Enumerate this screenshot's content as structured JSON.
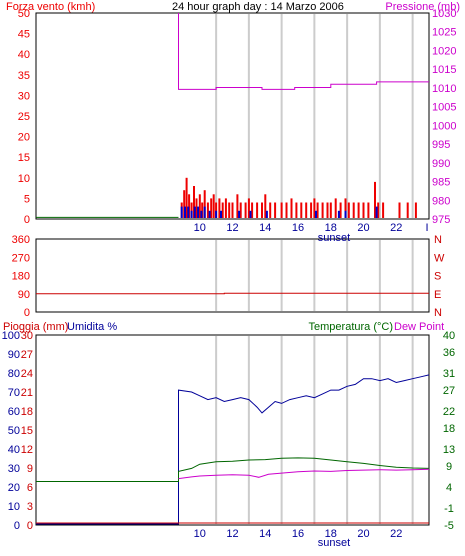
{
  "chart_data": [
    {
      "type": "bar",
      "title": "24 hour graph day : 14 Marzo 2006",
      "left_axis_label": "Forza vento (kmh)",
      "right_axis_label": "Pressione (mb)",
      "x_ticks": [
        "10",
        "12",
        "14",
        "16",
        "18",
        "20",
        "22"
      ],
      "x_extra_tick": "I",
      "x_annotation": "sunset",
      "left_ticks": [
        0,
        5,
        10,
        15,
        20,
        25,
        30,
        35,
        40,
        45,
        50
      ],
      "right_ticks": [
        975,
        980,
        985,
        990,
        995,
        1000,
        1005,
        1010,
        1015,
        1020,
        1025,
        1030
      ],
      "ylim_left": [
        0,
        50
      ],
      "ylim_right": [
        975,
        1030
      ],
      "series": [
        {
          "name": "pressure",
          "style": "line",
          "color": "#cc00cc",
          "points": [
            [
              8.7,
              1030
            ],
            [
              8.7,
              1009.6
            ],
            [
              11.0,
              1009.6
            ],
            [
              11.0,
              1010.1
            ],
            [
              13.8,
              1010.1
            ],
            [
              13.8,
              1009.6
            ],
            [
              15.8,
              1009.6
            ],
            [
              15.8,
              1010.1
            ],
            [
              18.0,
              1010.1
            ],
            [
              18.0,
              1011.0
            ],
            [
              20.8,
              1011.0
            ],
            [
              20.8,
              1011.6
            ],
            [
              24,
              1011.6
            ]
          ]
        },
        {
          "name": "wind_gust",
          "style": "bars",
          "color": "#ee0000",
          "points": [
            [
              8.9,
              4
            ],
            [
              9.05,
              7
            ],
            [
              9.2,
              10
            ],
            [
              9.35,
              6
            ],
            [
              9.5,
              4
            ],
            [
              9.65,
              8
            ],
            [
              9.8,
              5
            ],
            [
              10.0,
              6
            ],
            [
              10.15,
              4
            ],
            [
              10.3,
              7
            ],
            [
              10.5,
              4
            ],
            [
              10.7,
              5
            ],
            [
              10.85,
              6
            ],
            [
              11.0,
              4
            ],
            [
              11.2,
              5
            ],
            [
              11.4,
              4
            ],
            [
              11.6,
              5
            ],
            [
              11.8,
              4
            ],
            [
              12.0,
              4
            ],
            [
              12.3,
              6
            ],
            [
              12.5,
              4
            ],
            [
              12.8,
              4
            ],
            [
              13.0,
              5
            ],
            [
              13.2,
              4
            ],
            [
              13.5,
              4
            ],
            [
              13.8,
              4
            ],
            [
              14.0,
              6
            ],
            [
              14.3,
              4
            ],
            [
              14.6,
              4
            ],
            [
              15.0,
              4
            ],
            [
              15.3,
              4
            ],
            [
              15.6,
              5
            ],
            [
              15.9,
              4
            ],
            [
              16.2,
              4
            ],
            [
              16.5,
              4
            ],
            [
              16.8,
              4
            ],
            [
              17.0,
              5
            ],
            [
              17.2,
              4
            ],
            [
              17.5,
              4
            ],
            [
              17.8,
              4
            ],
            [
              18.0,
              4
            ],
            [
              18.3,
              5
            ],
            [
              18.6,
              4
            ],
            [
              18.9,
              5
            ],
            [
              19.1,
              4
            ],
            [
              19.4,
              4
            ],
            [
              19.7,
              4
            ],
            [
              20.0,
              4
            ],
            [
              20.3,
              4
            ],
            [
              20.7,
              9
            ],
            [
              20.9,
              4
            ],
            [
              21.2,
              4
            ],
            [
              22.2,
              4
            ],
            [
              22.7,
              4
            ],
            [
              23.2,
              4
            ]
          ]
        },
        {
          "name": "wind_speed",
          "style": "bars",
          "color": "#0000cc",
          "points": [
            [
              8.9,
              3
            ],
            [
              9.1,
              3
            ],
            [
              9.3,
              3
            ],
            [
              9.5,
              2
            ],
            [
              9.7,
              3
            ],
            [
              9.9,
              3
            ],
            [
              10.1,
              2
            ],
            [
              10.3,
              3
            ],
            [
              10.6,
              2
            ],
            [
              11.0,
              2
            ],
            [
              11.3,
              2
            ],
            [
              12.4,
              2
            ],
            [
              13.1,
              2
            ],
            [
              14.1,
              2
            ],
            [
              17.1,
              2
            ],
            [
              18.5,
              2
            ],
            [
              18.9,
              2
            ],
            [
              20.8,
              3
            ]
          ]
        },
        {
          "name": "baseline",
          "style": "line",
          "color": "#006600",
          "points": [
            [
              0,
              0.4
            ],
            [
              8.7,
              0.4
            ]
          ]
        }
      ]
    },
    {
      "type": "line",
      "left_ticks": [
        "360",
        "270",
        "180",
        "90",
        "0"
      ],
      "right_ticks": [
        "N",
        "W",
        "S",
        "E",
        "N"
      ],
      "ylim": [
        0,
        360
      ],
      "series": [
        {
          "name": "wind_direction",
          "color": "#cc0000",
          "points": [
            [
              0,
              90
            ],
            [
              11.5,
              90
            ],
            [
              11.5,
              92
            ],
            [
              24,
              92
            ]
          ]
        }
      ]
    },
    {
      "type": "line",
      "rain_label": "Pioggia (mm)",
      "humidity_label": "Umidita %",
      "temperature_label": "Temperatura (°C)",
      "dewpoint_label": "Dew Point",
      "x_ticks": [
        "10",
        "12",
        "14",
        "16",
        "18",
        "20",
        "22"
      ],
      "x_annotation": "sunset",
      "humidity_ticks": [
        0,
        10,
        20,
        30,
        40,
        50,
        60,
        70,
        80,
        90,
        100
      ],
      "rain_ticks": [
        0,
        3,
        6,
        9,
        12,
        15,
        18,
        21,
        24,
        27,
        30
      ],
      "temperature_ticks": [
        -5,
        -1,
        4,
        9,
        13,
        18,
        22,
        27,
        31,
        36,
        40
      ],
      "ylim_left": [
        0,
        100
      ],
      "ylim_right": [
        -5,
        40
      ],
      "series": [
        {
          "name": "humidity",
          "color": "#000099",
          "points": [
            [
              0,
              -0.5
            ],
            [
              8.7,
              -0.5
            ],
            [
              8.7,
              71
            ],
            [
              9.5,
              70
            ],
            [
              10.0,
              68
            ],
            [
              10.5,
              66
            ],
            [
              11.0,
              67
            ],
            [
              11.5,
              65
            ],
            [
              12.0,
              66
            ],
            [
              12.5,
              67
            ],
            [
              13.0,
              66
            ],
            [
              13.5,
              62
            ],
            [
              13.8,
              59
            ],
            [
              14.2,
              62
            ],
            [
              14.6,
              65
            ],
            [
              15.0,
              64
            ],
            [
              15.5,
              66
            ],
            [
              16.0,
              67
            ],
            [
              16.5,
              68
            ],
            [
              17.0,
              67
            ],
            [
              17.5,
              69
            ],
            [
              18.0,
              71
            ],
            [
              18.5,
              71
            ],
            [
              19.0,
              73
            ],
            [
              19.5,
              74
            ],
            [
              20.0,
              77
            ],
            [
              20.5,
              77
            ],
            [
              21.0,
              76
            ],
            [
              21.5,
              77
            ],
            [
              22.0,
              75
            ],
            [
              22.5,
              76
            ],
            [
              23.0,
              77
            ],
            [
              23.5,
              78
            ],
            [
              24,
              79
            ]
          ]
        },
        {
          "name": "temperature",
          "color": "#006600",
          "points": [
            [
              0,
              5.3
            ],
            [
              8.7,
              5.3
            ],
            [
              8.7,
              7.7
            ],
            [
              9.5,
              8.4
            ],
            [
              10.0,
              9.4
            ],
            [
              11.0,
              10.0
            ],
            [
              12.0,
              10.1
            ],
            [
              13.0,
              10.4
            ],
            [
              14.0,
              10.5
            ],
            [
              15.0,
              10.8
            ],
            [
              16.0,
              10.9
            ],
            [
              17.0,
              10.8
            ],
            [
              18.0,
              10.4
            ],
            [
              19.0,
              10.0
            ],
            [
              20.0,
              9.6
            ],
            [
              21.0,
              9.1
            ],
            [
              22.0,
              8.7
            ],
            [
              23.0,
              8.5
            ],
            [
              24,
              8.4
            ]
          ]
        },
        {
          "name": "dew_point",
          "color": "#cc00cc",
          "points": [
            [
              8.7,
              6.0
            ],
            [
              9.5,
              6.4
            ],
            [
              10.0,
              6.6
            ],
            [
              11.0,
              6.8
            ],
            [
              12.0,
              6.9
            ],
            [
              13.0,
              6.8
            ],
            [
              13.6,
              6.3
            ],
            [
              14.2,
              7.0
            ],
            [
              15.0,
              7.3
            ],
            [
              16.0,
              7.6
            ],
            [
              17.0,
              7.8
            ],
            [
              18.0,
              7.7
            ],
            [
              19.0,
              7.9
            ],
            [
              20.0,
              8.0
            ],
            [
              21.0,
              8.1
            ],
            [
              22.0,
              8.0
            ],
            [
              23.0,
              8.1
            ],
            [
              24,
              8.2
            ]
          ]
        },
        {
          "name": "rain",
          "color": "#cc0000",
          "points": [
            [
              0,
              0.2
            ],
            [
              24,
              0.2
            ]
          ]
        }
      ]
    }
  ]
}
